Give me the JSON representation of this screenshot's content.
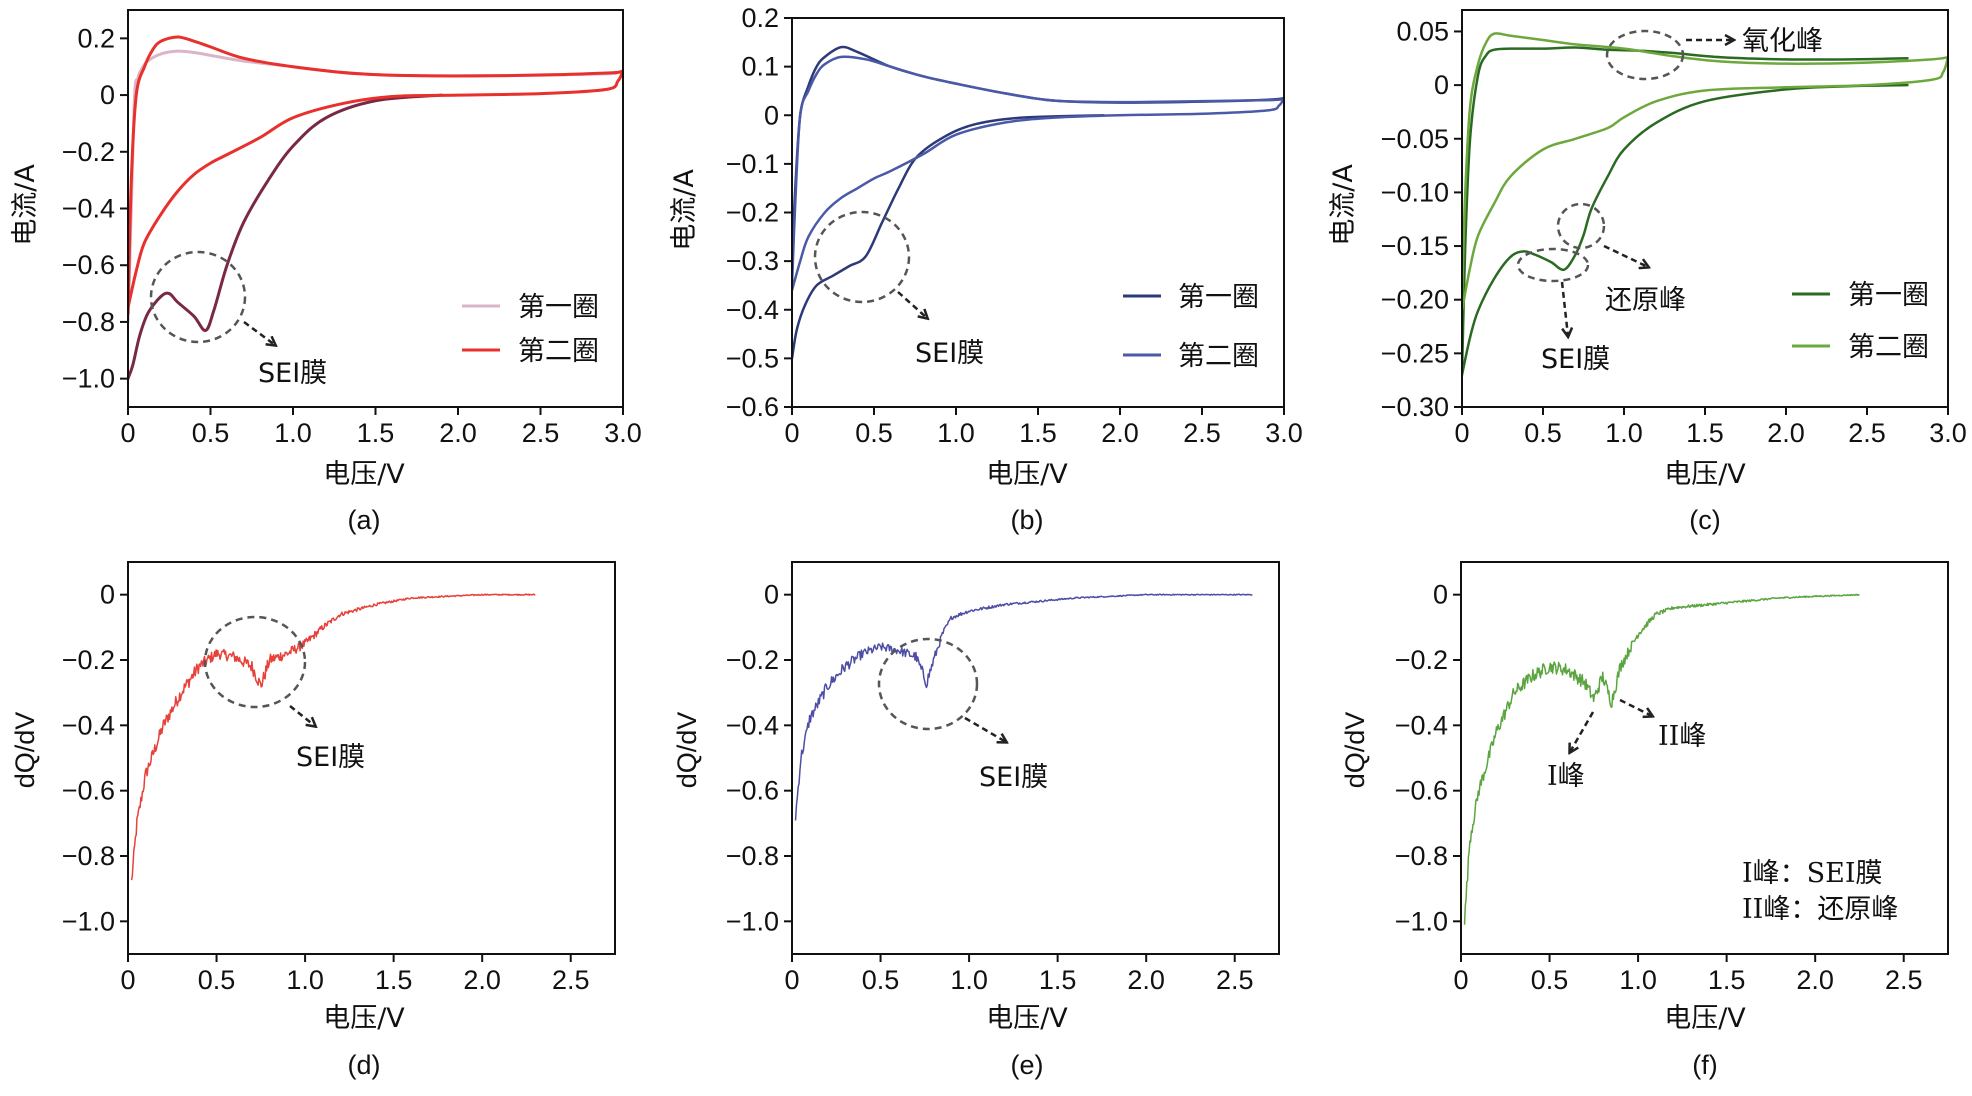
{
  "figure": {
    "background": "#ffffff",
    "axis_color": "#111111"
  },
  "chart_data": [
    {
      "id": "a",
      "type": "line",
      "panel_label": "(a)",
      "xlabel": "电压/V",
      "ylabel": "电流/A",
      "xlim": [
        0,
        3.0
      ],
      "ylim": [
        -1.1,
        0.3
      ],
      "xticks": [
        0,
        0.5,
        1.0,
        1.5,
        2.0,
        2.5,
        3.0
      ],
      "xtick_labels": [
        "0",
        "0.5",
        "1.0",
        "1.5",
        "2.0",
        "2.5",
        "3.0"
      ],
      "yticks": [
        0.2,
        0,
        -0.2,
        -0.4,
        -0.6,
        -0.8,
        -1.0
      ],
      "ytick_labels": [
        "0.2",
        "0",
        "−0.2",
        "−0.4",
        "−0.6",
        "−0.8",
        "−1.0"
      ],
      "legend": {
        "position": "lower-right",
        "entries": [
          "第一圈",
          "第二圈"
        ]
      },
      "series": [
        {
          "name": "第一圈",
          "color": "#dcb4c8",
          "width": 3,
          "x": [
            0.0,
            0.02,
            0.04,
            0.06,
            0.08,
            0.12,
            0.2,
            0.3,
            0.4,
            0.5,
            0.7,
            1.0,
            1.3,
            1.6,
            2.0,
            2.5,
            2.9,
            2.97,
            3.0
          ],
          "y": [
            -0.8,
            -0.4,
            0.0,
            0.06,
            0.09,
            0.12,
            0.145,
            0.155,
            0.15,
            0.14,
            0.12,
            0.1,
            0.08,
            0.07,
            0.068,
            0.07,
            0.075,
            0.08,
            0.085
          ]
        },
        {
          "name": "第一圈-还原",
          "color": "#7a2848",
          "width": 3,
          "x": [
            0.0,
            0.03,
            0.07,
            0.12,
            0.2,
            0.25,
            0.3,
            0.4,
            0.47,
            0.52,
            0.6,
            0.7,
            0.85,
            1.0,
            1.2,
            1.5,
            1.9
          ],
          "y": [
            -1.0,
            -0.95,
            -0.85,
            -0.77,
            -0.71,
            -0.7,
            -0.73,
            -0.78,
            -0.83,
            -0.76,
            -0.6,
            -0.45,
            -0.3,
            -0.18,
            -0.08,
            -0.02,
            0.0
          ]
        },
        {
          "name": "第二圈",
          "color": "#e8302c",
          "width": 3,
          "x": [
            0.0,
            0.02,
            0.05,
            0.1,
            0.15,
            0.2,
            0.3,
            0.4,
            0.5,
            0.7,
            1.0,
            1.4,
            1.8,
            2.2,
            2.6,
            2.9,
            2.97,
            3.0
          ],
          "y": [
            -0.77,
            -0.3,
            0.0,
            0.1,
            0.16,
            0.19,
            0.205,
            0.19,
            0.17,
            0.13,
            0.1,
            0.075,
            0.068,
            0.068,
            0.072,
            0.078,
            0.08,
            0.085
          ]
        },
        {
          "name": "第二圈-还原",
          "color": "#e8302c",
          "width": 3,
          "x": [
            0.0,
            0.05,
            0.1,
            0.2,
            0.3,
            0.4,
            0.5,
            0.6,
            0.8,
            1.0,
            1.3,
            1.6,
            2.0,
            2.5,
            2.9,
            2.97,
            3.0
          ],
          "y": [
            -0.75,
            -0.62,
            -0.52,
            -0.42,
            -0.34,
            -0.28,
            -0.24,
            -0.21,
            -0.15,
            -0.08,
            -0.03,
            -0.005,
            0.0,
            0.005,
            0.02,
            0.05,
            0.085
          ]
        }
      ],
      "annotations": [
        {
          "text": "SEI膜"
        }
      ]
    },
    {
      "id": "b",
      "type": "line",
      "panel_label": "(b)",
      "xlabel": "电压/V",
      "ylabel": "电流/A",
      "xlim": [
        0,
        3.0
      ],
      "ylim": [
        -0.6,
        0.2
      ],
      "xticks": [
        0,
        0.5,
        1.0,
        1.5,
        2.0,
        2.5,
        3.0
      ],
      "xtick_labels": [
        "0",
        "0.5",
        "1.0",
        "1.5",
        "2.0",
        "2.5",
        "3.0"
      ],
      "yticks": [
        0.2,
        0.1,
        0,
        -0.1,
        -0.2,
        -0.3,
        -0.4,
        -0.5,
        -0.6
      ],
      "ytick_labels": [
        "0.2",
        "0.1",
        "0",
        "−0.1",
        "−0.2",
        "−0.3",
        "−0.4",
        "−0.5",
        "−0.6"
      ],
      "legend": {
        "position": "lower-right",
        "entries": [
          "第一圈",
          "第二圈"
        ]
      },
      "series": [
        {
          "name": "第一圈",
          "color": "#2c3a78",
          "width": 2.5,
          "x": [
            0.0,
            0.02,
            0.05,
            0.1,
            0.15,
            0.2,
            0.3,
            0.4,
            0.6,
            0.8,
            1.0,
            1.3,
            1.6,
            2.0,
            2.5,
            2.9,
            3.0
          ],
          "y": [
            -0.3,
            -0.15,
            0.0,
            0.06,
            0.1,
            0.12,
            0.14,
            0.13,
            0.1,
            0.08,
            0.065,
            0.045,
            0.03,
            0.026,
            0.028,
            0.032,
            0.035
          ]
        },
        {
          "name": "第一圈-还原",
          "color": "#2c3a78",
          "width": 2.5,
          "x": [
            0.0,
            0.03,
            0.08,
            0.15,
            0.25,
            0.35,
            0.45,
            0.55,
            0.65,
            0.75,
            0.9,
            1.1,
            1.4,
            1.9
          ],
          "y": [
            -0.5,
            -0.44,
            -0.39,
            -0.35,
            -0.33,
            -0.31,
            -0.29,
            -0.22,
            -0.15,
            -0.09,
            -0.05,
            -0.02,
            -0.005,
            0.0
          ]
        },
        {
          "name": "第二圈",
          "color": "#4b5aa8",
          "width": 2.5,
          "x": [
            0.0,
            0.02,
            0.05,
            0.1,
            0.15,
            0.2,
            0.3,
            0.45,
            0.6,
            0.8,
            1.0,
            1.3,
            1.6,
            2.0,
            2.5,
            2.9,
            3.0
          ],
          "y": [
            -0.35,
            -0.18,
            0.0,
            0.05,
            0.085,
            0.105,
            0.12,
            0.115,
            0.1,
            0.08,
            0.065,
            0.045,
            0.03,
            0.027,
            0.029,
            0.031,
            0.033
          ]
        },
        {
          "name": "第二圈-还原",
          "color": "#4b5aa8",
          "width": 2.5,
          "x": [
            0.0,
            0.05,
            0.1,
            0.2,
            0.3,
            0.4,
            0.5,
            0.6,
            0.8,
            1.0,
            1.3,
            1.6,
            2.0,
            2.5,
            2.9,
            2.97,
            3.0
          ],
          "y": [
            -0.36,
            -0.3,
            -0.25,
            -0.2,
            -0.17,
            -0.15,
            -0.13,
            -0.115,
            -0.08,
            -0.04,
            -0.015,
            -0.005,
            0.0,
            0.003,
            0.01,
            0.02,
            0.035
          ]
        }
      ],
      "annotations": [
        {
          "text": "SEI膜"
        }
      ]
    },
    {
      "id": "c",
      "type": "line",
      "panel_label": "(c)",
      "xlabel": "电压/V",
      "ylabel": "电流/A",
      "xlim": [
        0,
        3.0
      ],
      "ylim": [
        -0.3,
        0.07
      ],
      "xticks": [
        0,
        0.5,
        1.0,
        1.5,
        2.0,
        2.5,
        3.0
      ],
      "xtick_labels": [
        "0",
        "0.5",
        "1.0",
        "1.5",
        "2.0",
        "2.5",
        "3.0"
      ],
      "yticks": [
        0.05,
        0,
        -0.05,
        -0.1,
        -0.15,
        -0.2,
        -0.25,
        -0.3
      ],
      "ytick_labels": [
        "0.05",
        "0",
        "−0.05",
        "−0.10",
        "−0.15",
        "−0.20",
        "−0.25",
        "−0.30"
      ],
      "legend": {
        "position": "lower-right",
        "entries": [
          "第一圈",
          "第二圈"
        ]
      },
      "series": [
        {
          "name": "第一圈",
          "color": "#2b6a22",
          "width": 2.5,
          "x": [
            0.0,
            0.02,
            0.05,
            0.1,
            0.15,
            0.2,
            0.3,
            0.5,
            0.7,
            0.9,
            1.1,
            1.3,
            1.6,
            2.0,
            2.4,
            2.75
          ],
          "y": [
            -0.27,
            -0.15,
            -0.05,
            0.01,
            0.028,
            0.033,
            0.034,
            0.034,
            0.035,
            0.033,
            0.032,
            0.03,
            0.026,
            0.024,
            0.024,
            0.025
          ]
        },
        {
          "name": "第一圈-还原",
          "color": "#2b6a22",
          "width": 2.5,
          "x": [
            0.0,
            0.05,
            0.1,
            0.2,
            0.3,
            0.38,
            0.45,
            0.55,
            0.63,
            0.7,
            0.75,
            0.8,
            0.9,
            1.0,
            1.2,
            1.5,
            2.0,
            2.4,
            2.75
          ],
          "y": [
            -0.27,
            -0.235,
            -0.21,
            -0.18,
            -0.16,
            -0.155,
            -0.158,
            -0.165,
            -0.172,
            -0.158,
            -0.14,
            -0.115,
            -0.085,
            -0.06,
            -0.035,
            -0.015,
            -0.004,
            -0.001,
            0.0
          ]
        },
        {
          "name": "第二圈",
          "color": "#6da83c",
          "width": 2.5,
          "x": [
            0.0,
            0.02,
            0.05,
            0.1,
            0.15,
            0.2,
            0.3,
            0.5,
            0.7,
            1.0,
            1.3,
            1.6,
            2.0,
            2.5,
            2.9,
            3.0
          ],
          "y": [
            -0.2,
            -0.1,
            -0.02,
            0.02,
            0.04,
            0.048,
            0.046,
            0.042,
            0.038,
            0.034,
            0.027,
            0.022,
            0.02,
            0.021,
            0.024,
            0.026
          ]
        },
        {
          "name": "第二圈-还原",
          "color": "#6da83c",
          "width": 2.5,
          "x": [
            0.0,
            0.05,
            0.1,
            0.2,
            0.3,
            0.5,
            0.7,
            0.9,
            1.0,
            1.2,
            1.5,
            2.0,
            2.5,
            2.9,
            2.97,
            3.0
          ],
          "y": [
            -0.21,
            -0.17,
            -0.14,
            -0.11,
            -0.085,
            -0.06,
            -0.05,
            -0.04,
            -0.03,
            -0.015,
            -0.005,
            -0.002,
            0.0,
            0.005,
            0.012,
            0.026
          ]
        }
      ],
      "annotations": [
        {
          "text": "氧化峰"
        },
        {
          "text": "还原峰"
        },
        {
          "text": "SEI膜"
        }
      ]
    },
    {
      "id": "d",
      "type": "line",
      "panel_label": "(d)",
      "xlabel": "电压/V",
      "ylabel": "dQ/dV",
      "xlim": [
        0,
        2.75
      ],
      "ylim": [
        -1.1,
        0.1
      ],
      "xticks": [
        0,
        0.5,
        1.0,
        1.5,
        2.0,
        2.5
      ],
      "xtick_labels": [
        "0",
        "0.5",
        "1.0",
        "1.5",
        "2.0",
        "2.5"
      ],
      "yticks": [
        0,
        -0.2,
        -0.4,
        -0.6,
        -0.8,
        -1.0
      ],
      "ytick_labels": [
        "0",
        "−0.2",
        "−0.4",
        "−0.6",
        "−0.8",
        "−1.0"
      ],
      "noise": 0.02,
      "series": [
        {
          "name": "dQ/dV",
          "color": "#e8403a",
          "width": 1.5,
          "x": [
            0.02,
            0.05,
            0.1,
            0.2,
            0.3,
            0.4,
            0.5,
            0.6,
            0.7,
            0.75,
            0.8,
            0.9,
            1.0,
            1.1,
            1.2,
            1.4,
            1.6,
            1.8,
            2.0,
            2.3
          ],
          "y": [
            -0.88,
            -0.7,
            -0.55,
            -0.4,
            -0.3,
            -0.22,
            -0.18,
            -0.19,
            -0.22,
            -0.28,
            -0.2,
            -0.18,
            -0.15,
            -0.1,
            -0.06,
            -0.03,
            -0.01,
            -0.005,
            0.0,
            0.0
          ]
        }
      ],
      "annotations": [
        {
          "text": "SEI膜"
        }
      ]
    },
    {
      "id": "e",
      "type": "line",
      "panel_label": "(e)",
      "xlabel": "电压/V",
      "ylabel": "dQ/dV",
      "xlim": [
        0,
        2.75
      ],
      "ylim": [
        -1.1,
        0.1
      ],
      "xticks": [
        0,
        0.5,
        1.0,
        1.5,
        2.0,
        2.5
      ],
      "xtick_labels": [
        "0",
        "0.5",
        "1.0",
        "1.5",
        "2.0",
        "2.5"
      ],
      "yticks": [
        0,
        -0.2,
        -0.4,
        -0.6,
        -0.8,
        -1.0
      ],
      "ytick_labels": [
        "0",
        "−0.2",
        "−0.4",
        "−0.6",
        "−0.8",
        "−1.0"
      ],
      "noise": 0.018,
      "series": [
        {
          "name": "dQ/dV",
          "color": "#4e4ea6",
          "width": 1.5,
          "x": [
            0.02,
            0.05,
            0.1,
            0.2,
            0.3,
            0.4,
            0.5,
            0.6,
            0.7,
            0.76,
            0.8,
            0.85,
            0.9,
            1.0,
            1.2,
            1.4,
            1.6,
            2.0,
            2.6
          ],
          "y": [
            -0.68,
            -0.5,
            -0.38,
            -0.28,
            -0.22,
            -0.18,
            -0.16,
            -0.17,
            -0.19,
            -0.27,
            -0.2,
            -0.12,
            -0.07,
            -0.05,
            -0.03,
            -0.02,
            -0.01,
            0.0,
            0.0
          ]
        }
      ],
      "annotations": [
        {
          "text": "SEI膜"
        }
      ]
    },
    {
      "id": "f",
      "type": "line",
      "panel_label": "(f)",
      "xlabel": "电压/V",
      "ylabel": "dQ/dV",
      "xlim": [
        0,
        2.75
      ],
      "ylim": [
        -1.1,
        0.1
      ],
      "xticks": [
        0,
        0.5,
        1.0,
        1.5,
        2.0,
        2.5
      ],
      "xtick_labels": [
        "0",
        "0.5",
        "1.0",
        "1.5",
        "2.0",
        "2.5"
      ],
      "yticks": [
        0,
        -0.2,
        -0.4,
        -0.6,
        -0.8,
        -1.0
      ],
      "ytick_labels": [
        "0",
        "−0.2",
        "−0.4",
        "−0.6",
        "−0.8",
        "−1.0"
      ],
      "noise": 0.02,
      "series": [
        {
          "name": "dQ/dV",
          "color": "#5ba540",
          "width": 1.5,
          "x": [
            0.02,
            0.05,
            0.1,
            0.2,
            0.3,
            0.4,
            0.5,
            0.6,
            0.7,
            0.75,
            0.8,
            0.85,
            0.9,
            1.0,
            1.1,
            1.2,
            1.4,
            1.6,
            1.8,
            2.0,
            2.25
          ],
          "y": [
            -1.0,
            -0.75,
            -0.6,
            -0.42,
            -0.3,
            -0.25,
            -0.22,
            -0.23,
            -0.27,
            -0.32,
            -0.25,
            -0.33,
            -0.22,
            -0.12,
            -0.06,
            -0.04,
            -0.03,
            -0.02,
            -0.01,
            -0.005,
            0.0
          ]
        }
      ],
      "annotations": [
        {
          "text": "I峰"
        },
        {
          "text": "II峰"
        }
      ],
      "notes": [
        "I峰：SEI膜",
        "II峰：还原峰"
      ]
    }
  ]
}
